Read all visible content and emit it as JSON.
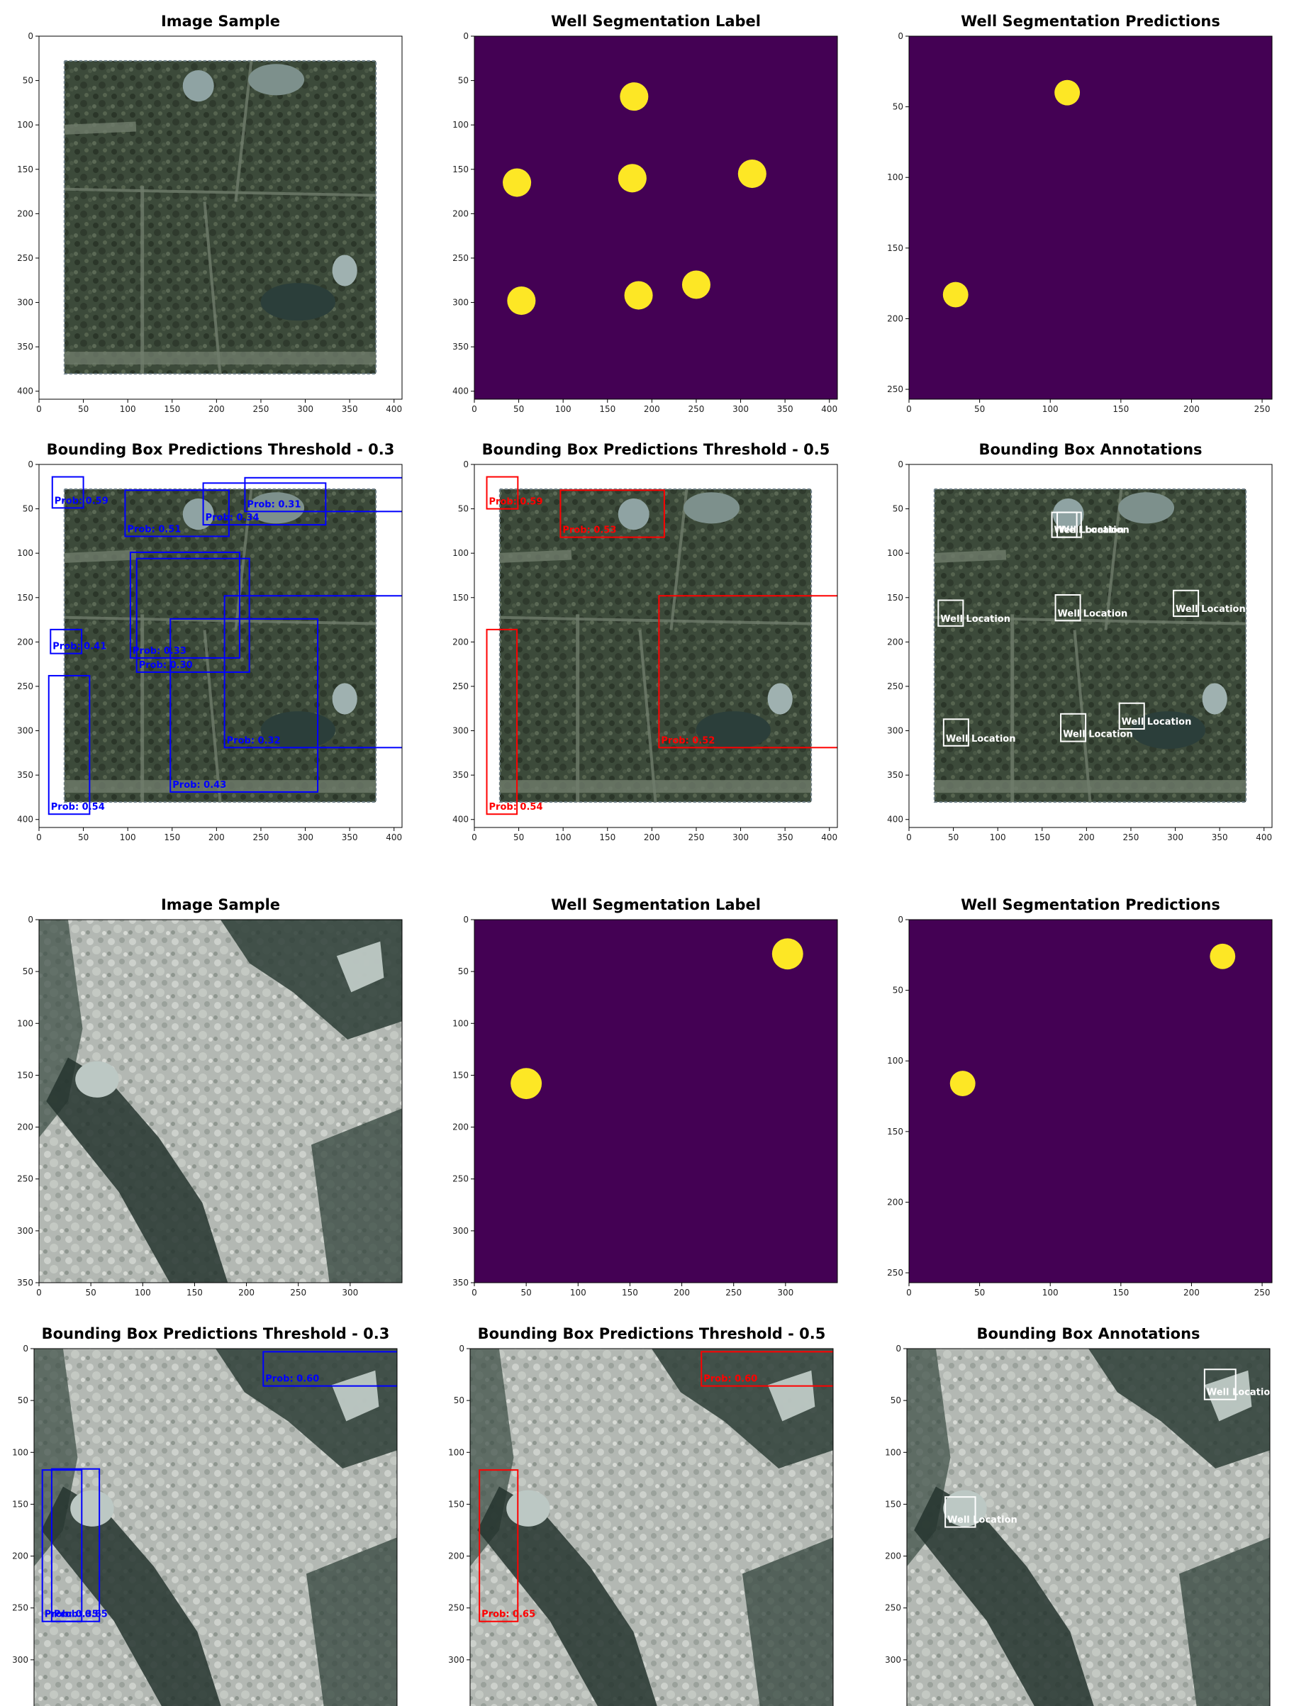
{
  "chart_data": [
    {
      "type": "image",
      "title": "Image Sample",
      "xlim": [
        0,
        409
      ],
      "ylim": [
        409,
        0
      ],
      "xticks": [
        0,
        50,
        100,
        150,
        200,
        250,
        300,
        350,
        400
      ],
      "yticks": [
        0,
        50,
        100,
        150,
        200,
        250,
        300,
        350,
        400
      ]
    },
    {
      "type": "segmentation",
      "title": "Well Segmentation Label",
      "background_color": "#440154",
      "color": "#fde725",
      "xlim": [
        0,
        409
      ],
      "ylim": [
        409,
        0
      ],
      "xticks": [
        0,
        50,
        100,
        150,
        200,
        250,
        300,
        350,
        400
      ],
      "yticks": [
        0,
        50,
        100,
        150,
        200,
        250,
        300,
        350,
        400
      ],
      "blobs": [
        {
          "x": 180,
          "y": 68,
          "r": 16
        },
        {
          "x": 48,
          "y": 165,
          "r": 16
        },
        {
          "x": 178,
          "y": 160,
          "r": 16
        },
        {
          "x": 313,
          "y": 155,
          "r": 16
        },
        {
          "x": 53,
          "y": 298,
          "r": 16
        },
        {
          "x": 185,
          "y": 292,
          "r": 16
        },
        {
          "x": 250,
          "y": 280,
          "r": 16
        }
      ]
    },
    {
      "type": "segmentation",
      "title": "Well Segmentation Predictions",
      "background_color": "#440154",
      "color": "#fde725",
      "xlim": [
        0,
        257
      ],
      "ylim": [
        257,
        0
      ],
      "xticks": [
        0,
        50,
        100,
        150,
        200,
        250
      ],
      "yticks": [
        0,
        50,
        100,
        150,
        200,
        250
      ],
      "blobs": [
        {
          "x": 112,
          "y": 40,
          "r": 9
        },
        {
          "x": 33,
          "y": 183,
          "r": 9
        }
      ]
    },
    {
      "type": "boxes",
      "title": "Bounding Box Predictions Threshold - 0.3",
      "color": "#0000ff",
      "xlim": [
        0,
        409
      ],
      "ylim": [
        409,
        0
      ],
      "xticks": [
        0,
        50,
        100,
        150,
        200,
        250,
        300,
        350,
        400
      ],
      "yticks": [
        0,
        50,
        100,
        150,
        200,
        250,
        300,
        350,
        400
      ],
      "boxes": [
        {
          "x0": 15,
          "y0": 14,
          "x1": 50,
          "y1": 49,
          "label": "Prob: 0.59"
        },
        {
          "x0": 97,
          "y0": 29,
          "x1": 214,
          "y1": 81,
          "label": "Prob: 0.51"
        },
        {
          "x0": 185,
          "y0": 21,
          "x1": 323,
          "y1": 68,
          "label": "Prob: 0.34"
        },
        {
          "x0": 232,
          "y0": 15,
          "x1": 420,
          "y1": 53,
          "label": "Prob: 0.31"
        },
        {
          "x0": 13,
          "y0": 186,
          "x1": 48,
          "y1": 213,
          "label": "Prob: 0.41"
        },
        {
          "x0": 103,
          "y0": 99,
          "x1": 226,
          "y1": 218,
          "label": "Prob: 0.33"
        },
        {
          "x0": 110,
          "y0": 106,
          "x1": 237,
          "y1": 234,
          "label": "Prob: 0.30"
        },
        {
          "x0": 148,
          "y0": 174,
          "x1": 314,
          "y1": 369,
          "label": "Prob: 0.43"
        },
        {
          "x0": 209,
          "y0": 148,
          "x1": 420,
          "y1": 319,
          "label": "Prob: 0.32"
        },
        {
          "x0": 11,
          "y0": 238,
          "x1": 57,
          "y1": 394,
          "label": "Prob: 0.54"
        }
      ]
    },
    {
      "type": "boxes",
      "title": "Bounding Box Predictions Threshold - 0.5",
      "color": "#ff0000",
      "xlim": [
        0,
        409
      ],
      "ylim": [
        409,
        0
      ],
      "xticks": [
        0,
        50,
        100,
        150,
        200,
        250,
        300,
        350,
        400
      ],
      "yticks": [
        0,
        50,
        100,
        150,
        200,
        250,
        300,
        350,
        400
      ],
      "boxes": [
        {
          "x0": 14,
          "y0": 14,
          "x1": 49,
          "y1": 50,
          "label": "Prob: 0.59"
        },
        {
          "x0": 97,
          "y0": 29,
          "x1": 214,
          "y1": 82,
          "label": "Prob: 0.53"
        },
        {
          "x0": 208,
          "y0": 148,
          "x1": 416,
          "y1": 319,
          "label": "Prob: 0.52"
        },
        {
          "x0": 14,
          "y0": 186,
          "x1": 48,
          "y1": 394,
          "label": "Prob: 0.54"
        }
      ]
    },
    {
      "type": "boxes",
      "title": "Bounding Box Annotations",
      "color": "#ffffff",
      "xlim": [
        0,
        409
      ],
      "ylim": [
        409,
        0
      ],
      "xticks": [
        0,
        50,
        100,
        150,
        200,
        250,
        300,
        350,
        400
      ],
      "yticks": [
        0,
        50,
        100,
        150,
        200,
        250,
        300,
        350,
        400
      ],
      "boxes": [
        {
          "x0": 161,
          "y0": 54,
          "x1": 189,
          "y1": 82,
          "label": "Well Location"
        },
        {
          "x0": 167,
          "y0": 54,
          "x1": 194,
          "y1": 82,
          "label": "Well Location"
        },
        {
          "x0": 33,
          "y0": 153,
          "x1": 61,
          "y1": 182,
          "label": "Well Location"
        },
        {
          "x0": 165,
          "y0": 147,
          "x1": 193,
          "y1": 176,
          "label": "Well Location"
        },
        {
          "x0": 298,
          "y0": 142,
          "x1": 326,
          "y1": 171,
          "label": "Well Location"
        },
        {
          "x0": 39,
          "y0": 287,
          "x1": 67,
          "y1": 317,
          "label": "Well Location"
        },
        {
          "x0": 171,
          "y0": 281,
          "x1": 199,
          "y1": 312,
          "label": "Well Location"
        },
        {
          "x0": 237,
          "y0": 269,
          "x1": 265,
          "y1": 298,
          "label": "Well Location"
        }
      ]
    },
    {
      "type": "image",
      "title": "Image Sample",
      "xlim": [
        0,
        350
      ],
      "ylim": [
        350,
        0
      ],
      "xticks": [
        0,
        50,
        100,
        150,
        200,
        250,
        300
      ],
      "yticks": [
        0,
        50,
        100,
        150,
        200,
        250,
        300,
        350
      ]
    },
    {
      "type": "segmentation",
      "title": "Well Segmentation Label",
      "background_color": "#440154",
      "color": "#fde725",
      "xlim": [
        0,
        350
      ],
      "ylim": [
        350,
        0
      ],
      "xticks": [
        0,
        50,
        100,
        150,
        200,
        250,
        300
      ],
      "yticks": [
        0,
        50,
        100,
        150,
        200,
        250,
        300,
        350
      ],
      "blobs": [
        {
          "x": 302,
          "y": 33,
          "r": 15
        },
        {
          "x": 50,
          "y": 158,
          "r": 15
        }
      ]
    },
    {
      "type": "segmentation",
      "title": "Well Segmentation Predictions",
      "background_color": "#440154",
      "color": "#fde725",
      "xlim": [
        0,
        257
      ],
      "ylim": [
        257,
        0
      ],
      "xticks": [
        0,
        50,
        100,
        150,
        200,
        250
      ],
      "yticks": [
        0,
        50,
        100,
        150,
        200,
        250
      ],
      "blobs": [
        {
          "x": 222,
          "y": 26,
          "r": 9
        },
        {
          "x": 38,
          "y": 116,
          "r": 9
        }
      ]
    },
    {
      "type": "boxes",
      "title": "Bounding Box Predictions Threshold - 0.3",
      "color": "#0000ff",
      "xlim": [
        0,
        350
      ],
      "ylim": [
        350,
        0
      ],
      "yticks": [
        0,
        50,
        100,
        150,
        200,
        250,
        300
      ],
      "boxes": [
        {
          "x0": 221,
          "y0": 3,
          "x1": 420,
          "y1": 36,
          "label": "Prob: 0.60"
        },
        {
          "x0": 8,
          "y0": 117,
          "x1": 46,
          "y1": 263,
          "label": "Prob: 0.35"
        },
        {
          "x0": 17,
          "y0": 116,
          "x1": 63,
          "y1": 263,
          "label": "Prob: 0.65"
        }
      ]
    },
    {
      "type": "boxes",
      "title": "Bounding Box Predictions Threshold - 0.5",
      "color": "#ff0000",
      "xlim": [
        0,
        350
      ],
      "ylim": [
        350,
        0
      ],
      "yticks": [
        0,
        50,
        100,
        150,
        200,
        250,
        300
      ],
      "boxes": [
        {
          "x0": 223,
          "y0": 3,
          "x1": 420,
          "y1": 36,
          "label": "Prob: 0.60"
        },
        {
          "x0": 9,
          "y0": 117,
          "x1": 46,
          "y1": 263,
          "label": "Prob: 0.65"
        }
      ]
    },
    {
      "type": "boxes",
      "title": "Bounding Box Annotations",
      "color": "#ffffff",
      "xlim": [
        0,
        350
      ],
      "ylim": [
        350,
        0
      ],
      "yticks": [
        0,
        50,
        100,
        150,
        200,
        250,
        300
      ],
      "boxes": [
        {
          "x0": 287,
          "y0": 20,
          "x1": 317,
          "y1": 49,
          "label": "Well Location"
        },
        {
          "x0": 37,
          "y0": 143,
          "x1": 66,
          "y1": 172,
          "label": "Well Location"
        }
      ]
    }
  ]
}
